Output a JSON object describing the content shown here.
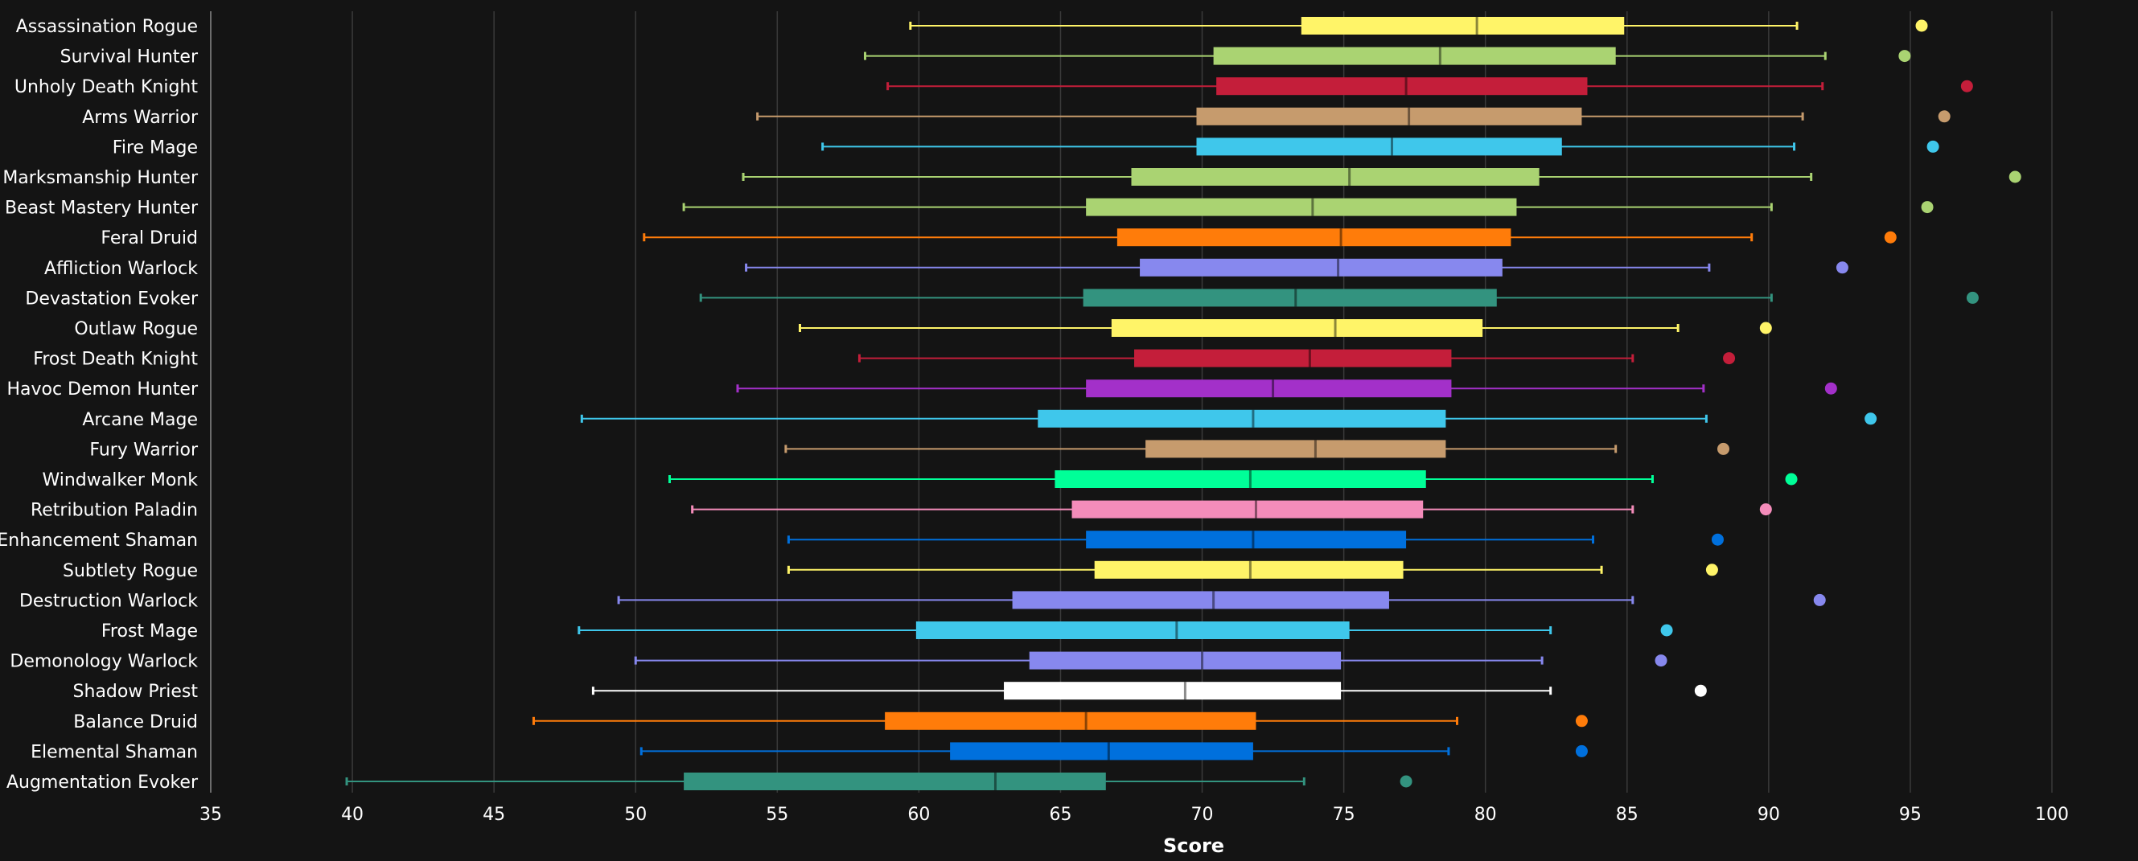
{
  "chart_data": {
    "type": "boxplot",
    "xlabel": "Score",
    "xlim": [
      35,
      100
    ],
    "xticks": [
      35,
      40,
      45,
      50,
      55,
      60,
      65,
      70,
      75,
      80,
      85,
      90,
      95,
      100
    ],
    "grid": "vertical",
    "series": [
      {
        "name": "Assassination Rogue",
        "color": "#FFF468",
        "min": 59.7,
        "q1": 73.5,
        "median": 79.7,
        "q3": 84.9,
        "max": 91.0,
        "outlier": 95.4
      },
      {
        "name": "Survival Hunter",
        "color": "#AAD372",
        "min": 58.1,
        "q1": 70.4,
        "median": 78.4,
        "q3": 84.6,
        "max": 92.0,
        "outlier": 94.8
      },
      {
        "name": "Unholy Death Knight",
        "color": "#C41E3A",
        "min": 58.9,
        "q1": 70.5,
        "median": 77.2,
        "q3": 83.6,
        "max": 91.9,
        "outlier": 97.0
      },
      {
        "name": "Arms Warrior",
        "color": "#C69B6D",
        "min": 54.3,
        "q1": 69.8,
        "median": 77.3,
        "q3": 83.4,
        "max": 91.2,
        "outlier": 96.2
      },
      {
        "name": "Fire Mage",
        "color": "#3FC7EB",
        "min": 56.6,
        "q1": 69.8,
        "median": 76.7,
        "q3": 82.7,
        "max": 90.9,
        "outlier": 95.8
      },
      {
        "name": "Marksmanship Hunter",
        "color": "#AAD372",
        "min": 53.8,
        "q1": 67.5,
        "median": 75.2,
        "q3": 81.9,
        "max": 91.5,
        "outlier": 98.7
      },
      {
        "name": "Beast Mastery Hunter",
        "color": "#AAD372",
        "min": 51.7,
        "q1": 65.9,
        "median": 73.9,
        "q3": 81.1,
        "max": 90.1,
        "outlier": 95.6
      },
      {
        "name": "Feral Druid",
        "color": "#FF7C0A",
        "min": 50.3,
        "q1": 67.0,
        "median": 74.9,
        "q3": 80.9,
        "max": 89.4,
        "outlier": 94.3
      },
      {
        "name": "Affliction Warlock",
        "color": "#8788EE",
        "min": 53.9,
        "q1": 67.8,
        "median": 74.8,
        "q3": 80.6,
        "max": 87.9,
        "outlier": 92.6
      },
      {
        "name": "Devastation Evoker",
        "color": "#33937F",
        "min": 52.3,
        "q1": 65.8,
        "median": 73.3,
        "q3": 80.4,
        "max": 90.1,
        "outlier": 97.2
      },
      {
        "name": "Outlaw Rogue",
        "color": "#FFF468",
        "min": 55.8,
        "q1": 66.8,
        "median": 74.7,
        "q3": 79.9,
        "max": 86.8,
        "outlier": 89.9
      },
      {
        "name": "Frost Death Knight",
        "color": "#C41E3A",
        "min": 57.9,
        "q1": 67.6,
        "median": 73.8,
        "q3": 78.8,
        "max": 85.2,
        "outlier": 88.6
      },
      {
        "name": "Havoc Demon Hunter",
        "color": "#A330C9",
        "min": 53.6,
        "q1": 65.9,
        "median": 72.5,
        "q3": 78.8,
        "max": 87.7,
        "outlier": 92.2
      },
      {
        "name": "Arcane Mage",
        "color": "#3FC7EB",
        "min": 48.1,
        "q1": 64.2,
        "median": 71.8,
        "q3": 78.6,
        "max": 87.8,
        "outlier": 93.6
      },
      {
        "name": "Fury Warrior",
        "color": "#C69B6D",
        "min": 55.3,
        "q1": 68.0,
        "median": 74.0,
        "q3": 78.6,
        "max": 84.6,
        "outlier": 88.4
      },
      {
        "name": "Windwalker Monk",
        "color": "#00FF98",
        "min": 51.2,
        "q1": 64.8,
        "median": 71.7,
        "q3": 77.9,
        "max": 85.9,
        "outlier": 90.8
      },
      {
        "name": "Retribution Paladin",
        "color": "#F48CBA",
        "min": 52.0,
        "q1": 65.4,
        "median": 71.9,
        "q3": 77.8,
        "max": 85.2,
        "outlier": 89.9
      },
      {
        "name": "Enhancement Shaman",
        "color": "#0070DD",
        "min": 55.4,
        "q1": 65.9,
        "median": 71.8,
        "q3": 77.2,
        "max": 83.8,
        "outlier": 88.2
      },
      {
        "name": "Subtlety Rogue",
        "color": "#FFF468",
        "min": 55.4,
        "q1": 66.2,
        "median": 71.7,
        "q3": 77.1,
        "max": 84.1,
        "outlier": 88.0
      },
      {
        "name": "Destruction Warlock",
        "color": "#8788EE",
        "min": 49.4,
        "q1": 63.3,
        "median": 70.4,
        "q3": 76.6,
        "max": 85.2,
        "outlier": 91.8
      },
      {
        "name": "Frost Mage",
        "color": "#3FC7EB",
        "min": 48.0,
        "q1": 59.9,
        "median": 69.1,
        "q3": 75.2,
        "max": 82.3,
        "outlier": 86.4
      },
      {
        "name": "Demonology Warlock",
        "color": "#8788EE",
        "min": 50.0,
        "q1": 63.9,
        "median": 70.0,
        "q3": 74.9,
        "max": 82.0,
        "outlier": 86.2
      },
      {
        "name": "Shadow Priest",
        "color": "#FFFFFF",
        "min": 48.5,
        "q1": 63.0,
        "median": 69.4,
        "q3": 74.9,
        "max": 82.3,
        "outlier": 87.6
      },
      {
        "name": "Balance Druid",
        "color": "#FF7C0A",
        "min": 46.4,
        "q1": 58.8,
        "median": 65.9,
        "q3": 71.9,
        "max": 79.0,
        "outlier": 83.4
      },
      {
        "name": "Elemental Shaman",
        "color": "#0070DD",
        "min": 50.2,
        "q1": 61.1,
        "median": 66.7,
        "q3": 71.8,
        "max": 78.7,
        "outlier": 83.4
      },
      {
        "name": "Augmentation Evoker",
        "color": "#33937F",
        "min": 39.8,
        "q1": 51.7,
        "median": 62.7,
        "q3": 66.6,
        "max": 73.6,
        "outlier": 77.2
      }
    ]
  }
}
